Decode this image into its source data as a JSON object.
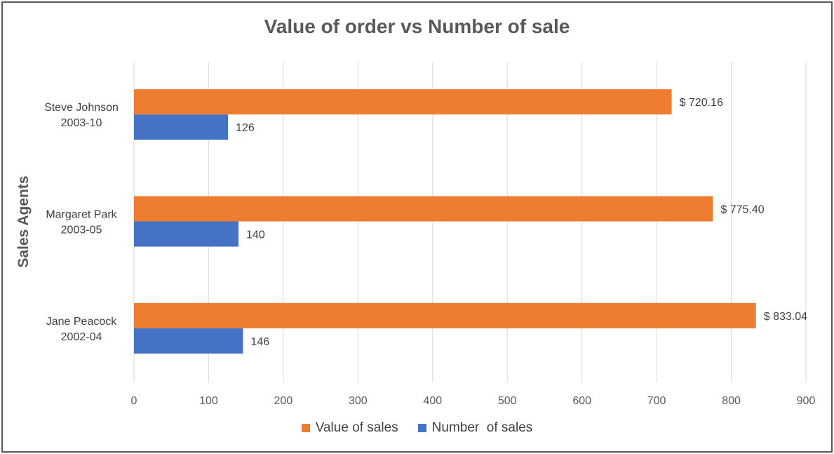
{
  "chart_data": {
    "type": "bar",
    "orientation": "horizontal",
    "title": "Value of order vs Number of sale",
    "ylabel": "Sales Agents",
    "xlabel": "",
    "categories": [
      [
        "Steve Johnson",
        "2003-10"
      ],
      [
        "Margaret Park",
        "2003-05"
      ],
      [
        "Jane Peacock",
        "2002-04"
      ]
    ],
    "series": [
      {
        "name": "Value of sales",
        "color": "#ED7D31",
        "values": [
          720.16,
          775.4,
          833.04
        ],
        "labels": [
          "$ 720.16",
          "$ 775.40",
          "$ 833.04"
        ]
      },
      {
        "name": "Number  of sales",
        "color": "#4472C4",
        "values": [
          126,
          140,
          146
        ],
        "labels": [
          "126",
          "140",
          "146"
        ]
      }
    ],
    "xlim": [
      0,
      900
    ],
    "xticks": [
      "0",
      "100",
      "200",
      "300",
      "400",
      "500",
      "600",
      "700",
      "800",
      "900"
    ],
    "grid": true,
    "legend_position": "bottom"
  }
}
